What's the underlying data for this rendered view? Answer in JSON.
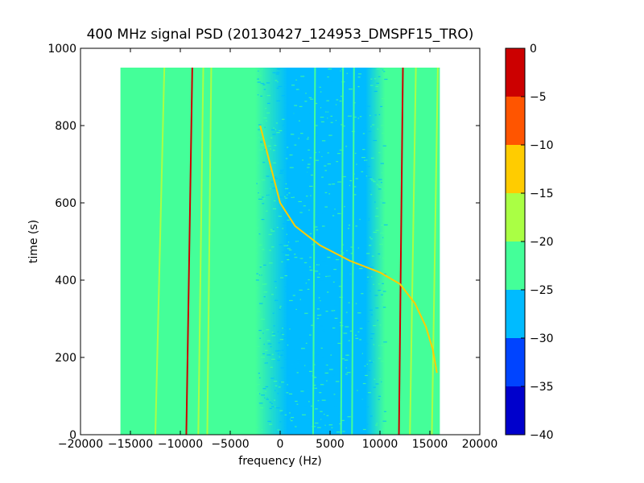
{
  "chart_data": {
    "type": "heatmap",
    "title": "400 MHz signal PSD (20130427_124953_DMSPF15_TRO)",
    "xlabel": "frequency (Hz)",
    "ylabel": "time (s)",
    "xlim": [
      -20000,
      20000
    ],
    "ylim": [
      0,
      1000
    ],
    "x_ticks": [
      -20000,
      -15000,
      -10000,
      -5000,
      0,
      5000,
      10000,
      15000,
      20000
    ],
    "x_tick_labels": [
      "−20000",
      "−15000",
      "−10000",
      "−5000",
      "0",
      "5000",
      "10000",
      "15000",
      "20000"
    ],
    "y_ticks": [
      0,
      200,
      400,
      600,
      800,
      1000
    ],
    "y_tick_labels": [
      "0",
      "200",
      "400",
      "600",
      "800",
      "1000"
    ],
    "data_extent": {
      "x": [
        -16000,
        16000
      ],
      "y": [
        0,
        950
      ]
    },
    "background_level": -22.5,
    "noise_band_level": -27.5,
    "noise_band_x": [
      -2500,
      10500
    ],
    "vertical_lines": [
      {
        "x_start": -12500,
        "x_end": -11600,
        "level": -17.5
      },
      {
        "x_start": -9400,
        "x_end": -8800,
        "level": -2.5
      },
      {
        "x_start": -8200,
        "x_end": -7700,
        "level": -17.5
      },
      {
        "x_start": -7300,
        "x_end": -6900,
        "level": -17.5
      },
      {
        "x_start": 3300,
        "x_end": 3500,
        "level": -22.5
      },
      {
        "x_start": 6100,
        "x_end": 6300,
        "level": -22.5
      },
      {
        "x_start": 7200,
        "x_end": 7400,
        "level": -22.5
      },
      {
        "x_start": 11900,
        "x_end": 12300,
        "level": -2.5
      },
      {
        "x_start": 13000,
        "x_end": 13600,
        "level": -17.5
      },
      {
        "x_start": 15200,
        "x_end": 15800,
        "level": -17.5
      }
    ],
    "doppler_curve": {
      "level": -12.5,
      "points": [
        [
          -2000,
          800
        ],
        [
          -1000,
          700
        ],
        [
          0,
          600
        ],
        [
          1500,
          540
        ],
        [
          4000,
          490
        ],
        [
          7000,
          450
        ],
        [
          10000,
          420
        ],
        [
          12000,
          390
        ],
        [
          13500,
          340
        ],
        [
          14600,
          280
        ],
        [
          15300,
          220
        ],
        [
          15700,
          160
        ]
      ]
    },
    "colorbar": {
      "levels": [
        -40,
        -35,
        -30,
        -25,
        -20,
        -15,
        -10,
        -5,
        0
      ],
      "tick_labels": [
        "−40",
        "−35",
        "−30",
        "−25",
        "−20",
        "−15",
        "−10",
        "−5",
        "0"
      ],
      "colors": [
        "#0000cc",
        "#0044ff",
        "#00bbff",
        "#44ff99",
        "#aaff44",
        "#ffcc00",
        "#ff5500",
        "#cc0000"
      ]
    }
  }
}
